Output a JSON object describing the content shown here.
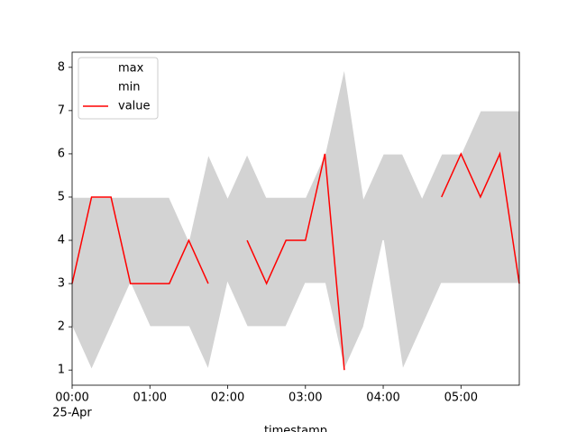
{
  "chart_data": {
    "type": "line",
    "x": [
      "00:00",
      "00:15",
      "00:30",
      "00:45",
      "01:00",
      "01:15",
      "01:30",
      "01:45",
      "02:00",
      "02:15",
      "02:30",
      "02:45",
      "03:00",
      "03:15",
      "03:30",
      "03:45",
      "04:00",
      "04:15",
      "04:30",
      "04:45",
      "05:00",
      "05:15",
      "05:30",
      "05:45"
    ],
    "x_label": "timestamp",
    "x_date_label": "25-Apr",
    "series": [
      {
        "name": "max",
        "color": "#ffffff",
        "values": [
          5,
          5,
          5,
          5,
          5,
          5,
          4,
          6,
          5,
          6,
          5,
          5,
          5,
          6,
          8,
          5,
          6,
          6,
          5,
          6,
          6,
          7,
          7,
          7
        ]
      },
      {
        "name": "min",
        "color": "#ffffff",
        "values": [
          2,
          1,
          2,
          3,
          2,
          2,
          2,
          1,
          3,
          2,
          2,
          2,
          3,
          3,
          1,
          2,
          4,
          1,
          2,
          3,
          3,
          3,
          3,
          3
        ]
      },
      {
        "name": "value",
        "color": "#ff0000",
        "values": [
          3,
          5,
          5,
          3,
          3,
          3,
          4,
          3,
          null,
          4,
          3,
          4,
          4,
          6,
          1,
          null,
          null,
          null,
          null,
          5,
          6,
          5,
          6,
          3
        ]
      }
    ],
    "fill_color": "#d3d3d3",
    "xlim": [
      "00:00",
      "05:45"
    ],
    "xticks": [
      "00:00",
      "01:00",
      "02:00",
      "03:00",
      "04:00",
      "05:00"
    ],
    "ylim": [
      0.65,
      8.35
    ],
    "yticks": [
      1,
      2,
      3,
      4,
      5,
      6,
      7,
      8
    ],
    "legend": "upper left"
  }
}
